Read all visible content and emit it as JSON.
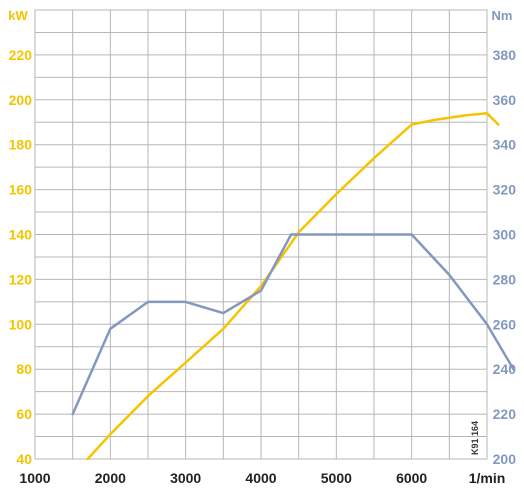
{
  "colors": {
    "power": "#f5c400",
    "torque": "#8398c0",
    "grid": "#b7b7b7",
    "axis_text": "#222222"
  },
  "chart_data": {
    "type": "line",
    "xlabel": "1/min",
    "x_ticks": [
      1000,
      2000,
      3000,
      4000,
      5000,
      6000
    ],
    "xlim": [
      1000,
      7000
    ],
    "y_left": {
      "label": "kW",
      "ticks": [
        40,
        60,
        80,
        100,
        120,
        140,
        160,
        180,
        200,
        220
      ],
      "lim": [
        40,
        240
      ]
    },
    "y_right": {
      "label": "Nm",
      "ticks": [
        200,
        220,
        240,
        260,
        280,
        300,
        320,
        340,
        360,
        380
      ],
      "lim": [
        200,
        400
      ]
    },
    "grid": true,
    "annotation": "K91 164",
    "series": [
      {
        "axis": "left",
        "points": [
          [
            1700,
            40
          ],
          [
            2000,
            51
          ],
          [
            2500,
            68
          ],
          [
            3000,
            83
          ],
          [
            3500,
            98
          ],
          [
            4000,
            117
          ],
          [
            4500,
            141
          ],
          [
            5000,
            158
          ],
          [
            5500,
            174
          ],
          [
            6000,
            189
          ],
          [
            6300,
            191
          ],
          [
            6700,
            193
          ],
          [
            7000,
            194
          ],
          [
            7150,
            189
          ]
        ]
      },
      {
        "axis": "right",
        "points": [
          [
            1500,
            220
          ],
          [
            2000,
            258
          ],
          [
            2500,
            270
          ],
          [
            3000,
            270
          ],
          [
            3500,
            265
          ],
          [
            4000,
            275
          ],
          [
            4400,
            300
          ],
          [
            5000,
            300
          ],
          [
            5500,
            300
          ],
          [
            6000,
            300
          ],
          [
            6500,
            282
          ],
          [
            7000,
            260
          ],
          [
            7350,
            240
          ]
        ]
      }
    ]
  }
}
